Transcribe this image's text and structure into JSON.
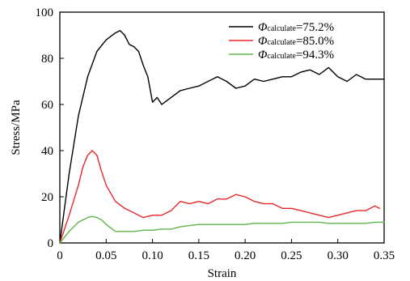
{
  "chart_data": {
    "type": "line",
    "title": "",
    "xlabel": "Strain",
    "ylabel": "Stress/MPa",
    "xlim": [
      0,
      0.35
    ],
    "ylim": [
      0,
      100
    ],
    "xticks": [
      "0",
      "0.05",
      "0.10",
      "0.15",
      "0.20",
      "0.25",
      "0.30",
      "0.35"
    ],
    "yticks": [
      "0",
      "20",
      "40",
      "60",
      "80",
      "100"
    ],
    "grid": false,
    "legend_position": "top-right",
    "series": [
      {
        "name": "Φcalculate=75.2%",
        "symbol": "Φ",
        "subscript": "calculate",
        "value_text": "=75.2%",
        "color": "#000000",
        "x": [
          0,
          0.01,
          0.02,
          0.03,
          0.04,
          0.05,
          0.06,
          0.065,
          0.07,
          0.075,
          0.08,
          0.085,
          0.09,
          0.095,
          0.1,
          0.105,
          0.11,
          0.12,
          0.13,
          0.14,
          0.15,
          0.16,
          0.17,
          0.18,
          0.19,
          0.2,
          0.21,
          0.22,
          0.23,
          0.24,
          0.25,
          0.26,
          0.27,
          0.28,
          0.29,
          0.3,
          0.31,
          0.32,
          0.33,
          0.34,
          0.35
        ],
        "y": [
          0,
          30,
          55,
          72,
          83,
          88,
          91,
          92,
          90,
          86,
          85,
          83,
          77,
          72,
          61,
          63,
          60,
          63,
          66,
          67,
          68,
          70,
          72,
          70,
          67,
          68,
          71,
          70,
          71,
          72,
          72,
          74,
          75,
          73,
          76,
          72,
          70,
          73,
          71,
          71,
          71
        ]
      },
      {
        "name": "Φcalculate=85.0%",
        "symbol": "Φ",
        "subscript": "calculate",
        "value_text": "=85.0%",
        "color": "#e8272a",
        "x": [
          0,
          0.01,
          0.02,
          0.025,
          0.03,
          0.035,
          0.04,
          0.045,
          0.05,
          0.06,
          0.07,
          0.08,
          0.09,
          0.1,
          0.11,
          0.12,
          0.13,
          0.14,
          0.15,
          0.16,
          0.17,
          0.18,
          0.19,
          0.2,
          0.21,
          0.22,
          0.23,
          0.24,
          0.25,
          0.26,
          0.27,
          0.28,
          0.29,
          0.3,
          0.31,
          0.32,
          0.33,
          0.34,
          0.345
        ],
        "y": [
          0,
          12,
          25,
          33,
          38,
          40,
          38,
          31,
          25,
          18,
          15,
          13,
          11,
          12,
          12,
          14,
          18,
          17,
          18,
          17,
          19,
          19,
          21,
          20,
          18,
          17,
          17,
          15,
          15,
          14,
          13,
          12,
          11,
          12,
          13,
          14,
          14,
          16,
          15
        ]
      },
      {
        "name": "Φcalculate=94.3%",
        "symbol": "Φ",
        "subscript": "calculate",
        "value_text": "=94.3%",
        "color": "#5fb548",
        "x": [
          0,
          0.01,
          0.02,
          0.03,
          0.035,
          0.04,
          0.045,
          0.05,
          0.06,
          0.07,
          0.08,
          0.09,
          0.1,
          0.11,
          0.12,
          0.13,
          0.14,
          0.15,
          0.16,
          0.17,
          0.18,
          0.19,
          0.2,
          0.21,
          0.22,
          0.23,
          0.24,
          0.25,
          0.26,
          0.27,
          0.28,
          0.29,
          0.3,
          0.31,
          0.32,
          0.33,
          0.34,
          0.35
        ],
        "y": [
          0,
          5,
          9,
          11,
          11.5,
          11,
          10,
          8,
          5,
          5,
          5,
          5.5,
          5.5,
          6,
          6,
          7,
          7.5,
          8,
          8,
          8,
          8,
          8,
          8,
          8.5,
          8.5,
          8.5,
          8.5,
          9,
          9,
          9,
          9,
          8.5,
          8.5,
          8.5,
          8.5,
          8.5,
          9,
          9
        ]
      }
    ]
  }
}
